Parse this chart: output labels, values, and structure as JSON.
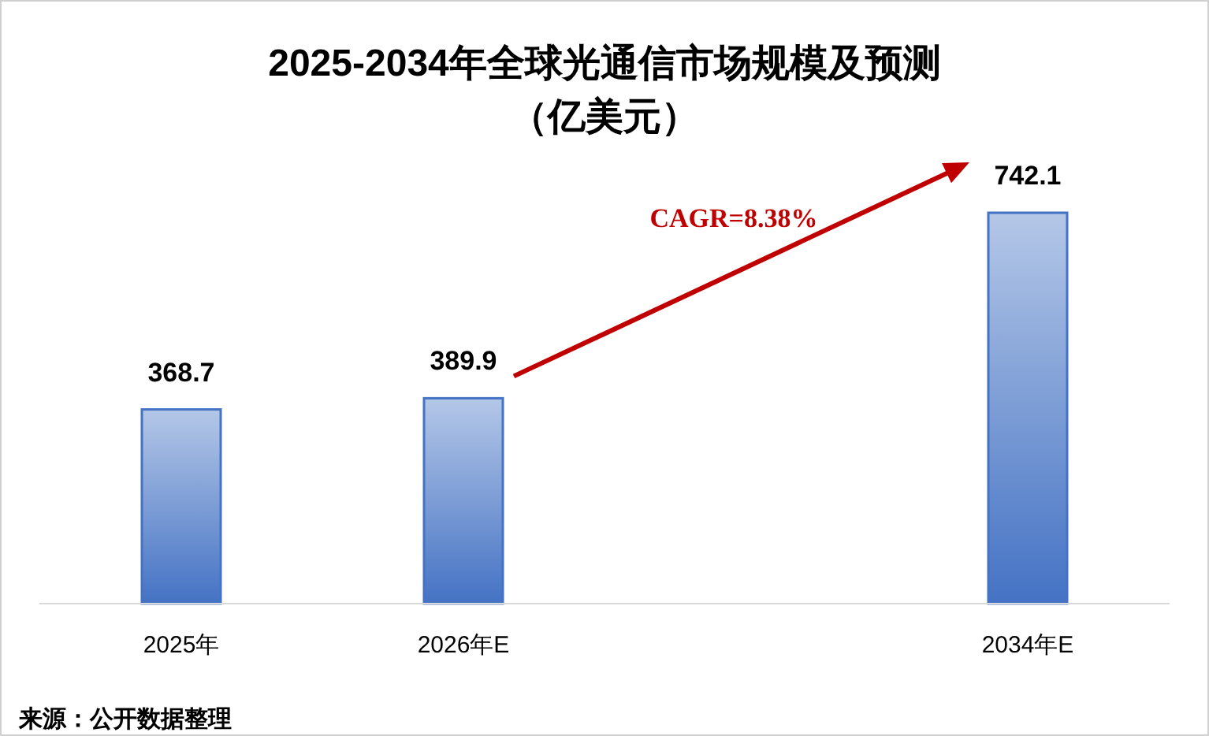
{
  "chart_data": {
    "type": "bar",
    "title": "2025-2034年全球光通信市场规模及预测",
    "subtitle": "（亿美元）",
    "categories": [
      "2025年",
      "2026年E",
      null,
      "2034年E"
    ],
    "values": [
      368.7,
      389.9,
      null,
      742.1
    ],
    "color": "#4472c4",
    "data_labels": true,
    "annotations": [
      "CAGR=8.38%",
      "来源：公开数据整理"
    ]
  }
}
